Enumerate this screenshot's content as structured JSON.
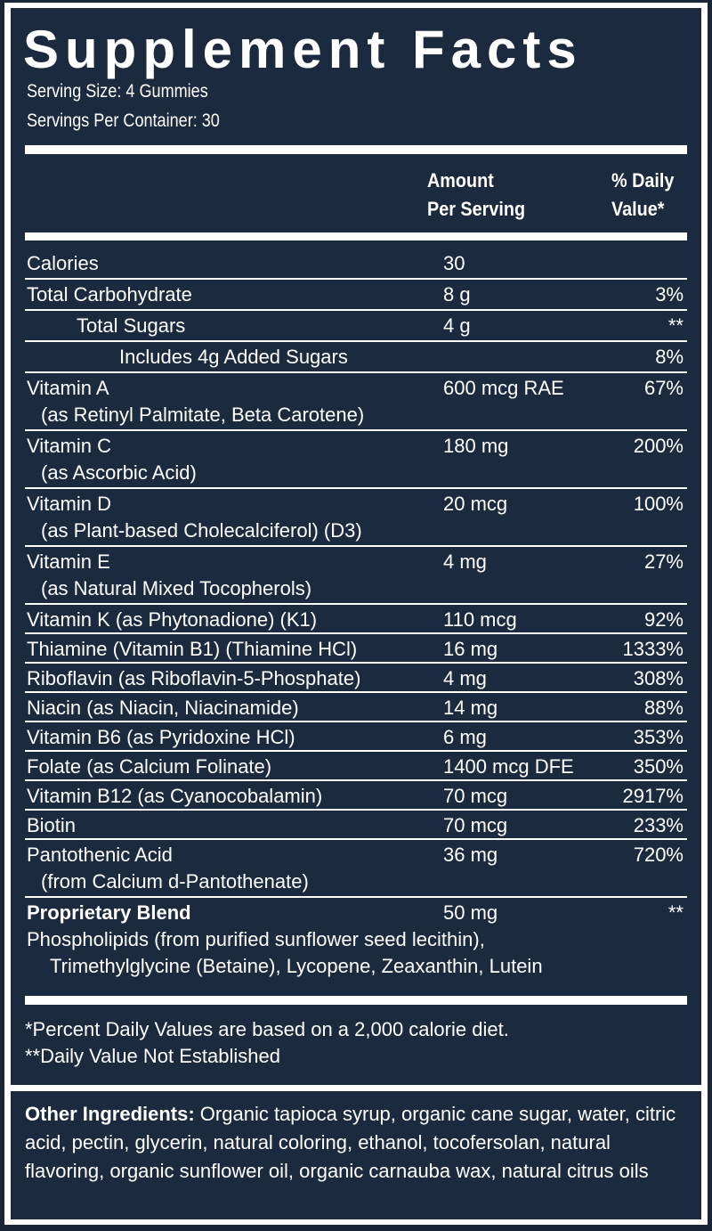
{
  "title": "Supplement Facts",
  "serving_size": "Serving Size: 4 Gummies",
  "servings_per_container": "Servings Per Container: 30",
  "header": {
    "amount_l1": "Amount",
    "amount_l2": "Per Serving",
    "dv_l1": "% Daily",
    "dv_l2": "Value*"
  },
  "rows": [
    {
      "name": "Calories",
      "amount": "30",
      "dv": ""
    },
    {
      "name": "Total Carbohydrate",
      "amount": "8 g",
      "dv": "3%"
    },
    {
      "name": "Total Sugars",
      "amount": "4 g",
      "dv": "**"
    },
    {
      "name": "Includes 4g Added Sugars",
      "amount": "",
      "dv": "8%"
    },
    {
      "name": "Vitamin A",
      "sub": "(as Retinyl Palmitate, Beta Carotene)",
      "amount": "600 mcg RAE",
      "dv": "67%"
    },
    {
      "name": "Vitamin C",
      "sub": "(as Ascorbic Acid)",
      "amount": "180 mg",
      "dv": "200%"
    },
    {
      "name": "Vitamin D",
      "sub": "(as Plant-based Cholecalciferol) (D3)",
      "amount": "20 mcg",
      "dv": "100%"
    },
    {
      "name": "Vitamin E",
      "sub": "(as Natural Mixed Tocopherols)",
      "amount": "4 mg",
      "dv": "27%"
    },
    {
      "name": "Vitamin K (as Phytonadione) (K1)",
      "amount": "110 mcg",
      "dv": "92%"
    },
    {
      "name": "Thiamine (Vitamin B1) (Thiamine HCl)",
      "amount": "16 mg",
      "dv": "1333%"
    },
    {
      "name": "Riboflavin (as Riboflavin-5-Phosphate)",
      "amount": "4 mg",
      "dv": "308%"
    },
    {
      "name": "Niacin (as Niacin, Niacinamide)",
      "amount": "14 mg",
      "dv": "88%"
    },
    {
      "name": "Vitamin B6 (as Pyridoxine HCl)",
      "amount": "6 mg",
      "dv": "353%"
    },
    {
      "name": "Folate (as Calcium Folinate)",
      "amount": "1400 mcg DFE",
      "dv": "350%"
    },
    {
      "name": "Vitamin B12 (as Cyanocobalamin)",
      "amount": "70 mcg",
      "dv": "2917%"
    },
    {
      "name": "Biotin",
      "amount": "70 mcg",
      "dv": "233%"
    },
    {
      "name": "Pantothenic Acid",
      "sub": "(from Calcium d-Pantothenate)",
      "amount": "36 mg",
      "dv": "720%"
    }
  ],
  "blend": {
    "name": "Proprietary Blend",
    "amount": "50 mg",
    "dv": "**",
    "line1": "Phospholipids (from purified sunflower seed lecithin),",
    "line2": "Trimethylglycine (Betaine), Lycopene, Zeaxanthin, Lutein"
  },
  "footnotes": [
    "*Percent Daily Values are based on a 2,000 calorie diet.",
    "**Daily Value Not Established"
  ],
  "other_ingredients": {
    "label": "Other Ingredients:",
    "text": " Organic tapioca syrup, organic cane sugar, water, citric acid, pectin, glycerin, natural coloring, ethanol, tocofersolan, natural flavoring, organic sunflower oil, organic carnauba wax, natural citrus oils"
  }
}
